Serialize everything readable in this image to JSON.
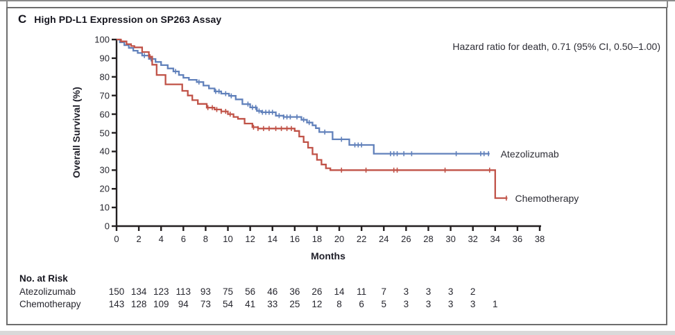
{
  "panel": {
    "label": "C",
    "title": "High PD-L1 Expression on SP263 Assay"
  },
  "chart_data": {
    "type": "line",
    "subtype": "kaplan_meier_step",
    "title": "High PD-L1 Expression on SP263 Assay",
    "annotation": "Hazard ratio for death, 0.71 (95% CI, 0.50–1.00)",
    "xlabel": "Months",
    "ylabel": "Overall Survival (%)",
    "xlim": [
      0,
      38
    ],
    "ylim": [
      0,
      100
    ],
    "xticks": [
      0,
      2,
      4,
      6,
      8,
      10,
      12,
      14,
      16,
      18,
      20,
      22,
      24,
      26,
      28,
      30,
      32,
      34,
      36,
      38
    ],
    "yticks": [
      0,
      10,
      20,
      30,
      40,
      50,
      60,
      70,
      80,
      90,
      100
    ],
    "grid": false,
    "axis_color": "#231f20",
    "legend_position": "end-of-curve",
    "series": [
      {
        "name": "Atezolizumab",
        "color": "#6181bb",
        "label_anchor": {
          "t": 34.3,
          "s": 38.8
        },
        "t_end": 33.5,
        "steps": [
          [
            0,
            100
          ],
          [
            0.3,
            98.5
          ],
          [
            0.7,
            97
          ],
          [
            1.1,
            95.5
          ],
          [
            1.5,
            94
          ],
          [
            1.9,
            92.8
          ],
          [
            2.3,
            91.4
          ],
          [
            2.9,
            89.6
          ],
          [
            3.5,
            88
          ],
          [
            4.0,
            86.3
          ],
          [
            4.6,
            84.5
          ],
          [
            5.1,
            82.9
          ],
          [
            5.6,
            81
          ],
          [
            6.0,
            79.5
          ],
          [
            6.5,
            78.4
          ],
          [
            7.2,
            77.2
          ],
          [
            7.8,
            75.3
          ],
          [
            8.3,
            73.8
          ],
          [
            8.8,
            72.2
          ],
          [
            9.4,
            71
          ],
          [
            10.1,
            69.8
          ],
          [
            10.7,
            67.9
          ],
          [
            11.3,
            65.4
          ],
          [
            12.0,
            63.6
          ],
          [
            12.6,
            61.7
          ],
          [
            13.0,
            61
          ],
          [
            14.3,
            59.2
          ],
          [
            15.0,
            58.5
          ],
          [
            16.6,
            57
          ],
          [
            17.1,
            55.5
          ],
          [
            17.6,
            54
          ],
          [
            17.9,
            52.5
          ],
          [
            18.2,
            50.4
          ],
          [
            19.4,
            46.5
          ],
          [
            20.9,
            43.5
          ],
          [
            23.1,
            38.8
          ]
        ],
        "censor_times": [
          2.5,
          3.1,
          5.3,
          7.4,
          8.9,
          9.2,
          9.8,
          10.3,
          11.8,
          12.2,
          12.5,
          12.8,
          13.1,
          13.4,
          13.7,
          14.0,
          14.6,
          15.0,
          15.3,
          15.6,
          16.2,
          16.8,
          17.3,
          18.7,
          20.2,
          21.4,
          21.7,
          22.0,
          24.6,
          24.9,
          25.2,
          25.8,
          26.5,
          30.5,
          32.7,
          33.0,
          33.4
        ]
      },
      {
        "name": "Chemotherapy",
        "color": "#c05247",
        "label_anchor": {
          "t": 35.6,
          "s": 15
        },
        "t_end": 35.1,
        "steps": [
          [
            0,
            100
          ],
          [
            0.4,
            99
          ],
          [
            0.9,
            97.5
          ],
          [
            1.3,
            96.5
          ],
          [
            1.6,
            95.8
          ],
          [
            2.3,
            93.3
          ],
          [
            2.9,
            90.8
          ],
          [
            3.2,
            86.5
          ],
          [
            3.6,
            81
          ],
          [
            4.4,
            76
          ],
          [
            5.9,
            72.5
          ],
          [
            6.4,
            70
          ],
          [
            6.8,
            67.5
          ],
          [
            7.3,
            65.5
          ],
          [
            8.1,
            63.5
          ],
          [
            8.8,
            62.5
          ],
          [
            9.4,
            61.5
          ],
          [
            10.0,
            60
          ],
          [
            10.5,
            58.5
          ],
          [
            10.9,
            57.5
          ],
          [
            11.5,
            55
          ],
          [
            12.2,
            53
          ],
          [
            12.7,
            52.3
          ],
          [
            16.0,
            51
          ],
          [
            16.4,
            48
          ],
          [
            16.8,
            45
          ],
          [
            17.2,
            42
          ],
          [
            17.6,
            38.5
          ],
          [
            18.0,
            35.5
          ],
          [
            18.4,
            33
          ],
          [
            18.8,
            31
          ],
          [
            19.2,
            30
          ],
          [
            34.0,
            15
          ]
        ],
        "censor_times": [
          3.0,
          8.2,
          8.6,
          9.0,
          9.4,
          9.8,
          10.2,
          12.3,
          12.7,
          13.2,
          13.7,
          14.3,
          14.8,
          15.3,
          15.7,
          20.2,
          22.4,
          24.9,
          25.2,
          29.5,
          33.5,
          35.0
        ]
      }
    ]
  },
  "risk_table": {
    "title": "No. at Risk",
    "month_interval": 2,
    "rows": [
      {
        "name": "Atezolizumab",
        "values": [
          150,
          134,
          123,
          113,
          93,
          75,
          56,
          46,
          36,
          26,
          14,
          11,
          7,
          3,
          3,
          3,
          2
        ]
      },
      {
        "name": "Chemotherapy",
        "values": [
          143,
          128,
          109,
          94,
          73,
          54,
          41,
          33,
          25,
          12,
          8,
          6,
          5,
          3,
          3,
          3,
          3,
          1
        ]
      }
    ]
  }
}
